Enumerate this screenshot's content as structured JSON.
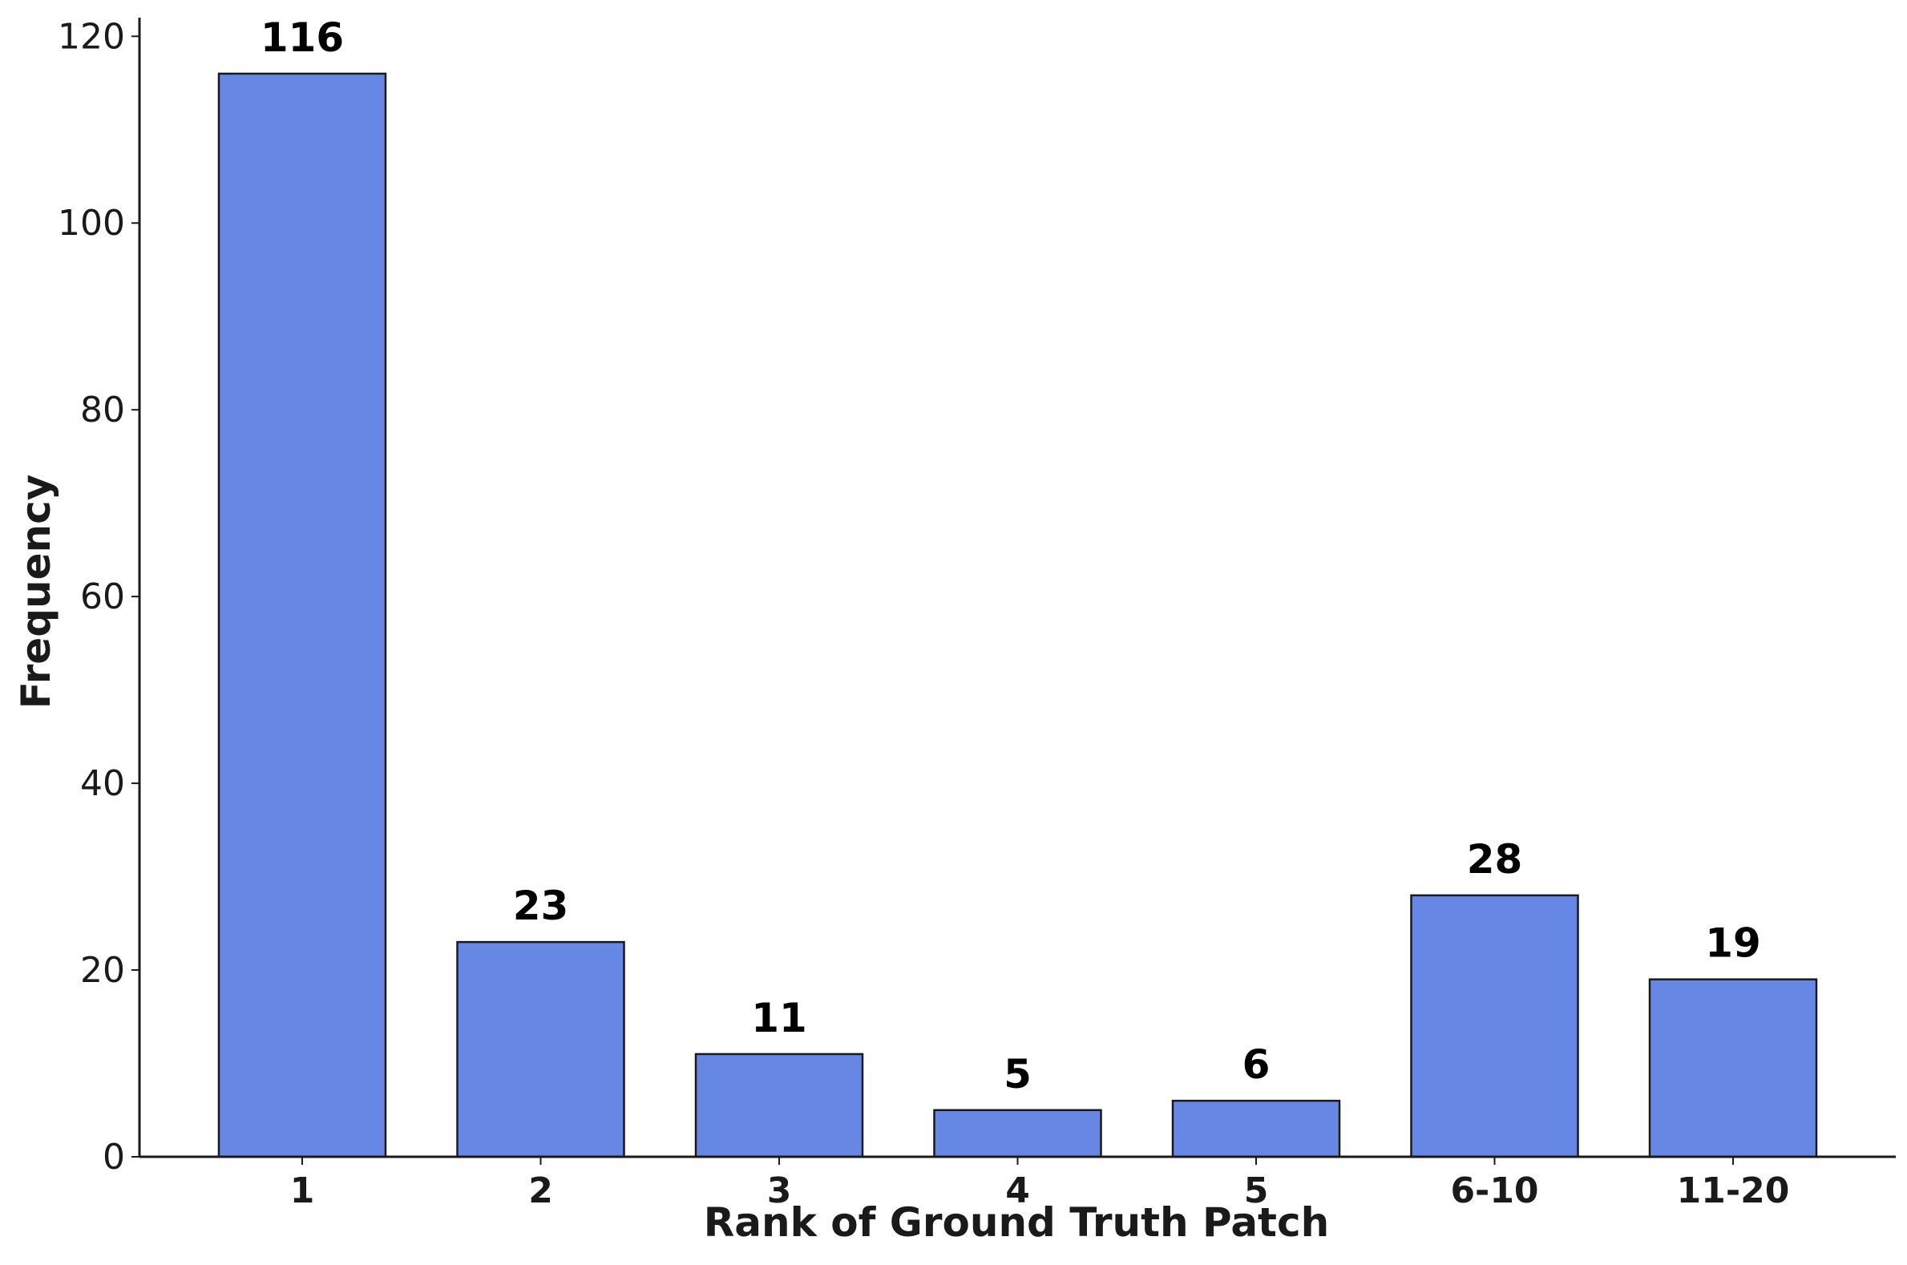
{
  "chart_data": {
    "type": "bar",
    "title": "",
    "xlabel": "Rank of Ground Truth Patch",
    "ylabel": "Frequency",
    "categories": [
      "1",
      "2",
      "3",
      "4",
      "5",
      "6-10",
      "11-20"
    ],
    "values": [
      116,
      23,
      11,
      5,
      6,
      28,
      19
    ],
    "data_labels": [
      "116",
      "23",
      "11",
      "5",
      "6",
      "28",
      "19"
    ],
    "ylim": [
      0,
      122
    ],
    "yticks": [
      0,
      20,
      40,
      60,
      80,
      100,
      120
    ],
    "ytick_labels": [
      "0",
      "20",
      "40",
      "60",
      "80",
      "100",
      "120"
    ],
    "grid": false,
    "legend": "none",
    "bar_color": "#6787e5",
    "edge_color": "#1a1a1a"
  }
}
